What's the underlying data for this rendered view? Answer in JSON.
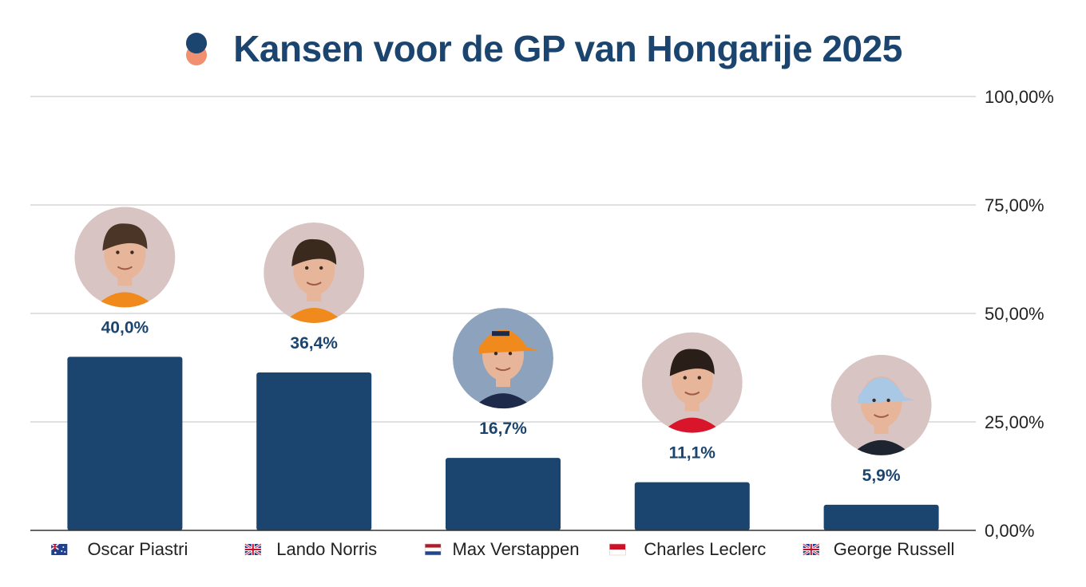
{
  "chart_data": {
    "type": "bar",
    "title": "Kansen voor de GP van Hongarije 2025",
    "categories": [
      "Oscar Piastri",
      "Lando Norris",
      "Max Verstappen",
      "Charles Leclerc",
      "George Russell"
    ],
    "flags": [
      "australia",
      "united-kingdom",
      "netherlands",
      "monaco",
      "united-kingdom"
    ],
    "values": [
      40.0,
      36.4,
      16.7,
      11.1,
      5.9
    ],
    "value_labels": [
      "40,0%",
      "36,4%",
      "16,7%",
      "11,1%",
      "5,9%"
    ],
    "ylim": [
      0,
      100
    ],
    "yticks": [
      0,
      25,
      50,
      75,
      100
    ],
    "ytick_labels": [
      "0,00%",
      "25,00%",
      "50,00%",
      "75,00%",
      "100,00%"
    ],
    "y_axis_position": "right",
    "grid": true,
    "xlabel": "",
    "ylabel": "",
    "bar_color": "#1b456f",
    "avatar_bg": [
      "#d9c4c4",
      "#d9c4c4",
      "#8da3bd",
      "#d9c4c4",
      "#d9c4c4"
    ],
    "avatar_names": [
      "oscar-piastri-avatar",
      "lando-norris-avatar",
      "max-verstappen-avatar",
      "charles-leclerc-avatar",
      "george-russell-avatar"
    ]
  },
  "colors": {
    "title": "#1b456f",
    "grid": "#d6d6d6",
    "axis": "#333333",
    "logo_top": "#1b456f",
    "logo_bottom": "#f09070"
  }
}
